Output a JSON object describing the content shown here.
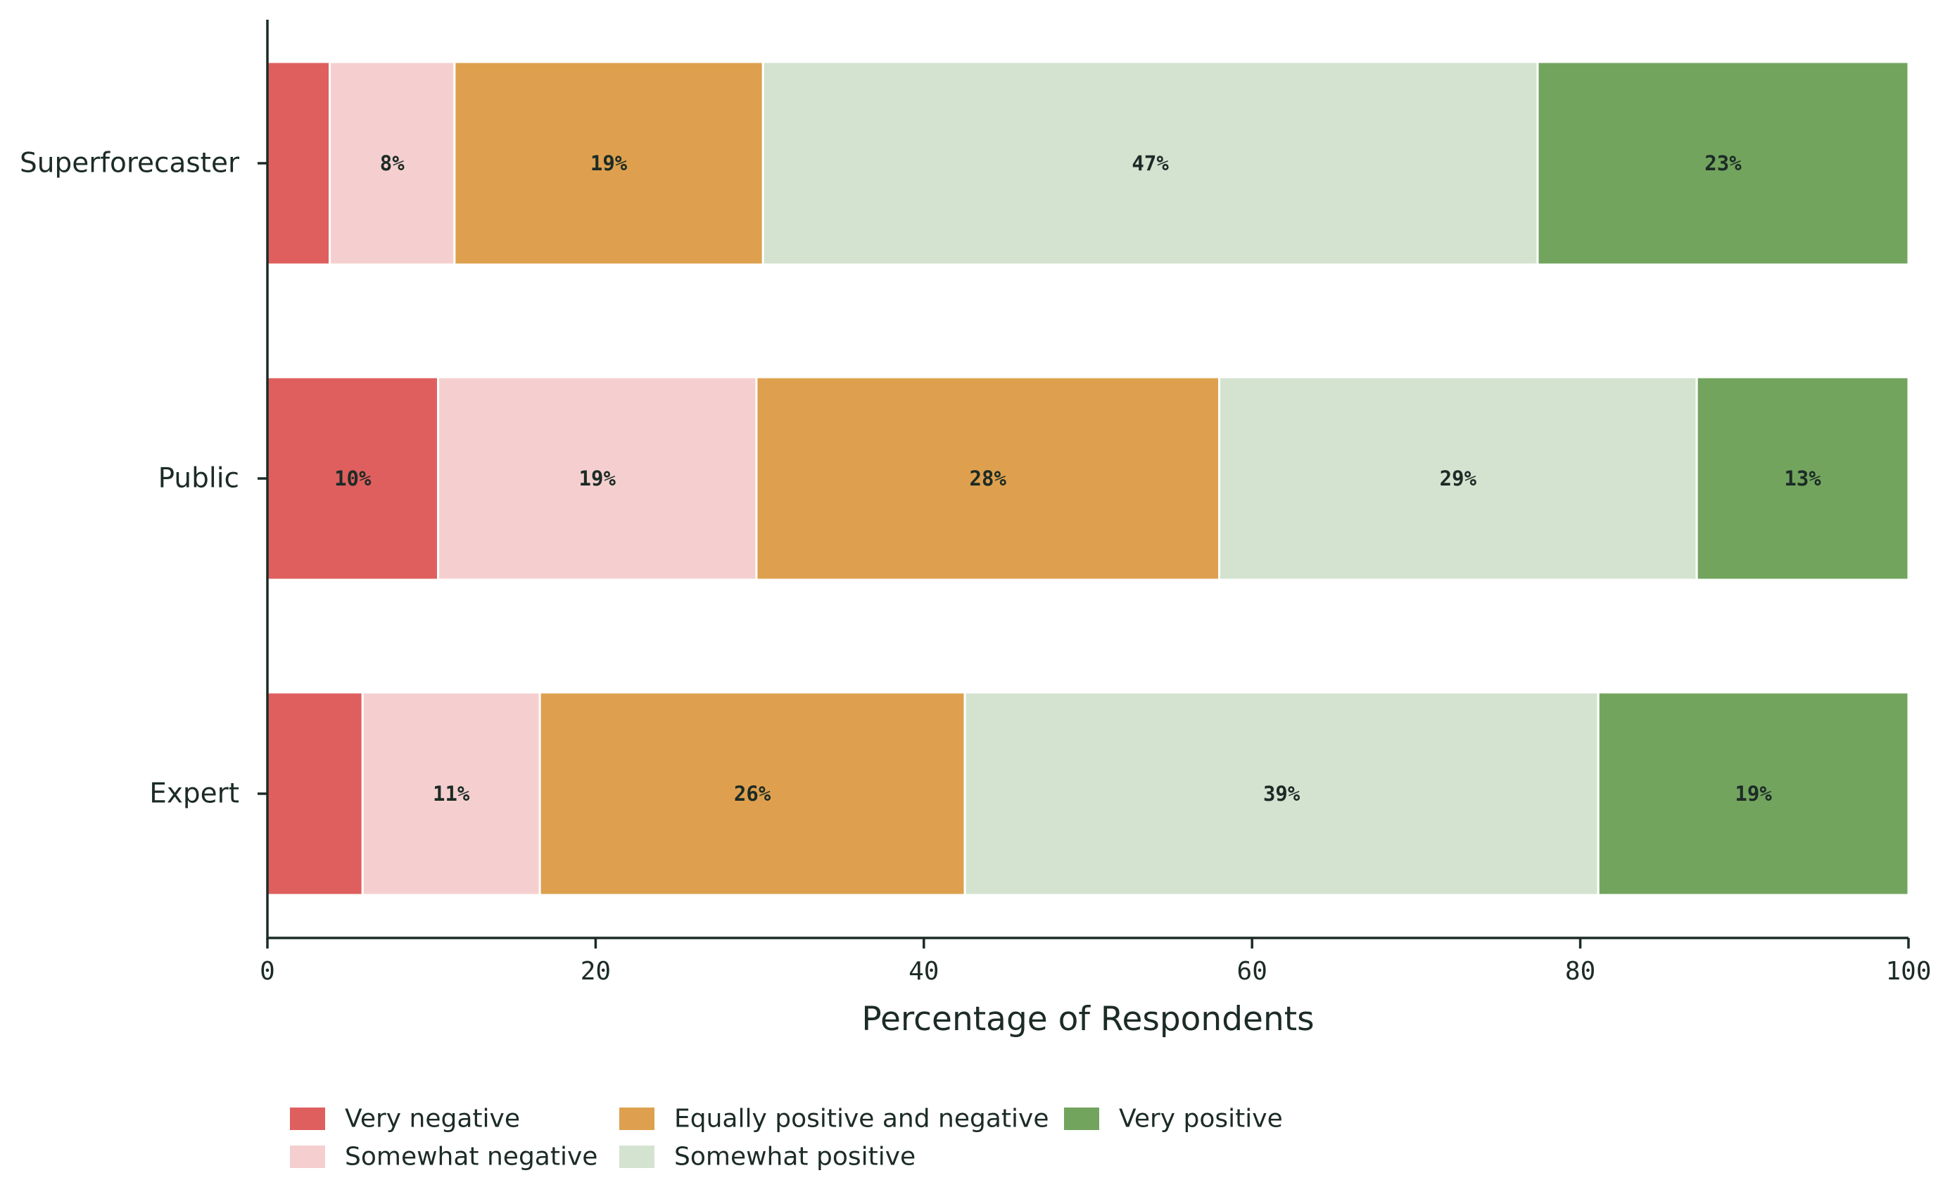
{
  "chart_data": {
    "type": "bar",
    "orientation": "horizontal",
    "stacked": true,
    "categories": [
      "Superforecaster",
      "Public",
      "Expert"
    ],
    "xlabel": "Percentage of Respondents",
    "ylabel": "",
    "xlim": [
      0,
      100
    ],
    "xticks": [
      "0",
      "20",
      "40",
      "60",
      "80",
      "100"
    ],
    "legend_position": "bottom-left",
    "series": [
      {
        "name": "Very negative",
        "color": "#df5f5f",
        "values": [
          3.8,
          10.4,
          5.8
        ],
        "labels": [
          "",
          "10%",
          ""
        ]
      },
      {
        "name": "Somewhat negative",
        "color": "#f5cfcf",
        "values": [
          7.6,
          19.4,
          10.8
        ],
        "labels": [
          "8%",
          "19%",
          "11%"
        ]
      },
      {
        "name": "Equally positive and negative",
        "color": "#dea04e",
        "values": [
          18.8,
          28.2,
          25.9
        ],
        "labels": [
          "19%",
          "28%",
          "26%"
        ]
      },
      {
        "name": "Somewhat positive",
        "color": "#d4e3d0",
        "values": [
          47.2,
          29.1,
          38.6
        ],
        "labels": [
          "47%",
          "29%",
          "39%"
        ]
      },
      {
        "name": "Very positive",
        "color": "#72a45e",
        "values": [
          22.6,
          12.9,
          18.9
        ],
        "labels": [
          "23%",
          "13%",
          "19%"
        ]
      }
    ]
  }
}
